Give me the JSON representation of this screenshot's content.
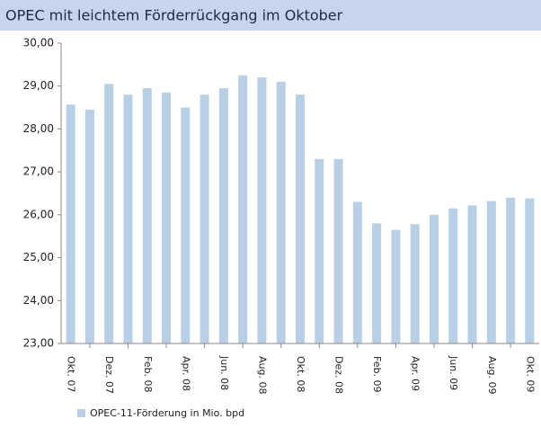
{
  "chart_data": {
    "type": "bar",
    "title": "OPEC mit leichtem Förderrückgang im Oktober",
    "categories": [
      "Okt. 07",
      null,
      "Dez. 07",
      null,
      "Feb. 08",
      null,
      "Apr. 08",
      null,
      "Jun. 08",
      null,
      "Aug. 08",
      null,
      "Okt. 08",
      null,
      "Dez. 08",
      null,
      "Feb. 09",
      null,
      "Apr. 09",
      null,
      "Jun. 09",
      null,
      "Aug. 09",
      null,
      "Okt. 09"
    ],
    "series": [
      {
        "name": "OPEC-11-Förderung in Mio. bpd",
        "color": "#b8cfe6",
        "values": [
          28.57,
          28.45,
          29.05,
          28.8,
          28.95,
          28.85,
          28.5,
          28.8,
          28.95,
          29.25,
          29.2,
          29.1,
          28.8,
          27.3,
          27.3,
          26.3,
          25.8,
          25.65,
          25.78,
          26.0,
          26.15,
          26.22,
          26.32,
          26.4,
          26.38
        ]
      }
    ],
    "ylim": [
      23,
      30
    ],
    "yticks": [
      {
        "value": 23,
        "label": "23,00"
      },
      {
        "value": 24,
        "label": "24,00"
      },
      {
        "value": 25,
        "label": "25,00"
      },
      {
        "value": 26,
        "label": "26,00"
      },
      {
        "value": 27,
        "label": "27,00"
      },
      {
        "value": 28,
        "label": "28,00"
      },
      {
        "value": 29,
        "label": "29,00"
      },
      {
        "value": 30,
        "label": "30,00"
      }
    ],
    "grid": false
  }
}
